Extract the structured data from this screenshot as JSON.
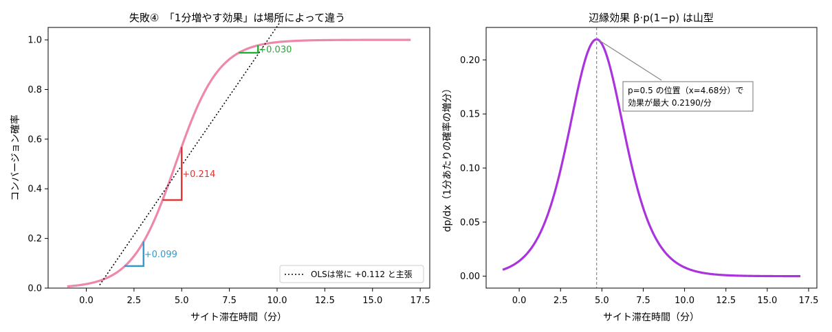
{
  "chart_data": [
    {
      "type": "line",
      "title": "失敗④　「1分増やす効果」は場所によって違う",
      "xlabel": "サイト滞在時間（分）",
      "ylabel": "コンバージョン確率",
      "xlim": [
        -2,
        18
      ],
      "ylim": [
        0,
        1.05
      ],
      "xticks": [
        0.0,
        2.5,
        5.0,
        7.5,
        10.0,
        12.5,
        15.0,
        17.5
      ],
      "xtick_labels": [
        "0.0",
        "2.5",
        "5.0",
        "7.5",
        "10.0",
        "12.5",
        "15.0",
        "17.5"
      ],
      "yticks": [
        0.0,
        0.2,
        0.4,
        0.6,
        0.8,
        1.0
      ],
      "ytick_labels": [
        "0.0",
        "0.2",
        "0.4",
        "0.6",
        "0.8",
        "1.0"
      ],
      "logistic": {
        "center": 4.68,
        "slope": 0.876,
        "x_range": [
          -1,
          17
        ],
        "color": "#ee88aa"
      },
      "ols": {
        "slope": 0.112,
        "intercept": -0.066,
        "x_range": [
          0.7,
          10.2
        ],
        "color": "#000000"
      },
      "steps": [
        {
          "x0": 2,
          "x1": 3,
          "y0": 0.089,
          "y1": 0.188,
          "label": "+0.099",
          "color": "#3399cc"
        },
        {
          "x0": 4,
          "x1": 5,
          "y0": 0.355,
          "y1": 0.569,
          "label": "+0.214",
          "color": "#dd3333"
        },
        {
          "x0": 8,
          "x1": 9,
          "y0": 0.948,
          "y1": 0.978,
          "label": "+0.030",
          "color": "#22aa33"
        }
      ],
      "legend": {
        "position": "lower-right",
        "entries": [
          "OLSは常に +0.112 と主張"
        ]
      }
    },
    {
      "type": "line",
      "title": "辺縁効果 β·p(1−p) は山型",
      "xlabel": "サイト滞在時間（分）",
      "ylabel": "dp/dx（1分あたりの確率の増分）",
      "xlim": [
        -2,
        18
      ],
      "ylim": [
        -0.011,
        0.23
      ],
      "xticks": [
        0.0,
        2.5,
        5.0,
        7.5,
        10.0,
        12.5,
        15.0,
        17.5
      ],
      "xtick_labels": [
        "0.0",
        "2.5",
        "5.0",
        "7.5",
        "10.0",
        "12.5",
        "15.0",
        "17.5"
      ],
      "yticks": [
        0.0,
        0.05,
        0.1,
        0.15,
        0.2
      ],
      "ytick_labels": [
        "0.00",
        "0.05",
        "0.10",
        "0.15",
        "0.20"
      ],
      "curve": {
        "beta": 0.876,
        "center": 4.68,
        "x_range": [
          -1,
          17
        ],
        "color": "#aa33dd"
      },
      "peak": {
        "x": 4.68,
        "y": 0.219
      },
      "annotation": {
        "lines": [
          "p=0.5 の位置（x=4.68分）で",
          "効果が最大 0.2190/分"
        ]
      }
    }
  ]
}
